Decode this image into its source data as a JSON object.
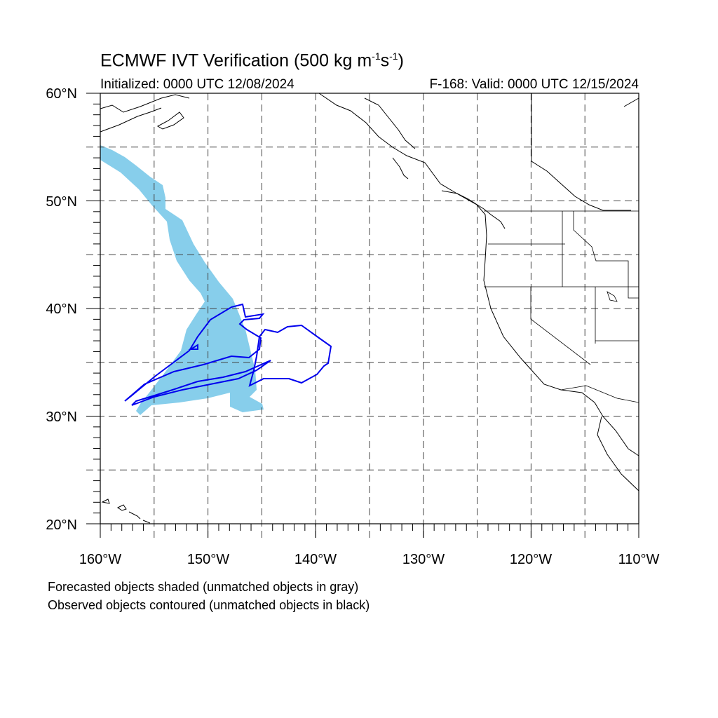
{
  "title": {
    "main": "ECMWF IVT Verification (500 kg m",
    "exp1": "-1",
    "mid": "s",
    "exp2": "-1",
    "close": ")"
  },
  "subtitle_left": "Initialized: 0000 UTC 12/08/2024",
  "subtitle_right": "F-168: Valid: 0000 UTC 12/15/2024",
  "map": {
    "lon_range": [
      -160,
      -110
    ],
    "lat_range": [
      20,
      60
    ],
    "lat_labels": [
      "60°N",
      "50°N",
      "40°N",
      "30°N",
      "20°N"
    ],
    "lon_labels": [
      "160°W",
      "150°W",
      "140°W",
      "130°W",
      "120°W",
      "110°W"
    ],
    "grid_lon": [
      -155,
      -150,
      -145,
      -140,
      -135,
      -130,
      -125,
      -120,
      -115
    ],
    "grid_lat": [
      25,
      30,
      35,
      40,
      45,
      50,
      55
    ],
    "forecast_color": "#87ceeb",
    "observed_color": "#0000ee"
  },
  "notes": [
    "Forecasted objects shaded (unmatched objects in gray)",
    "Observed objects contoured (unmatched objects in black)"
  ]
}
